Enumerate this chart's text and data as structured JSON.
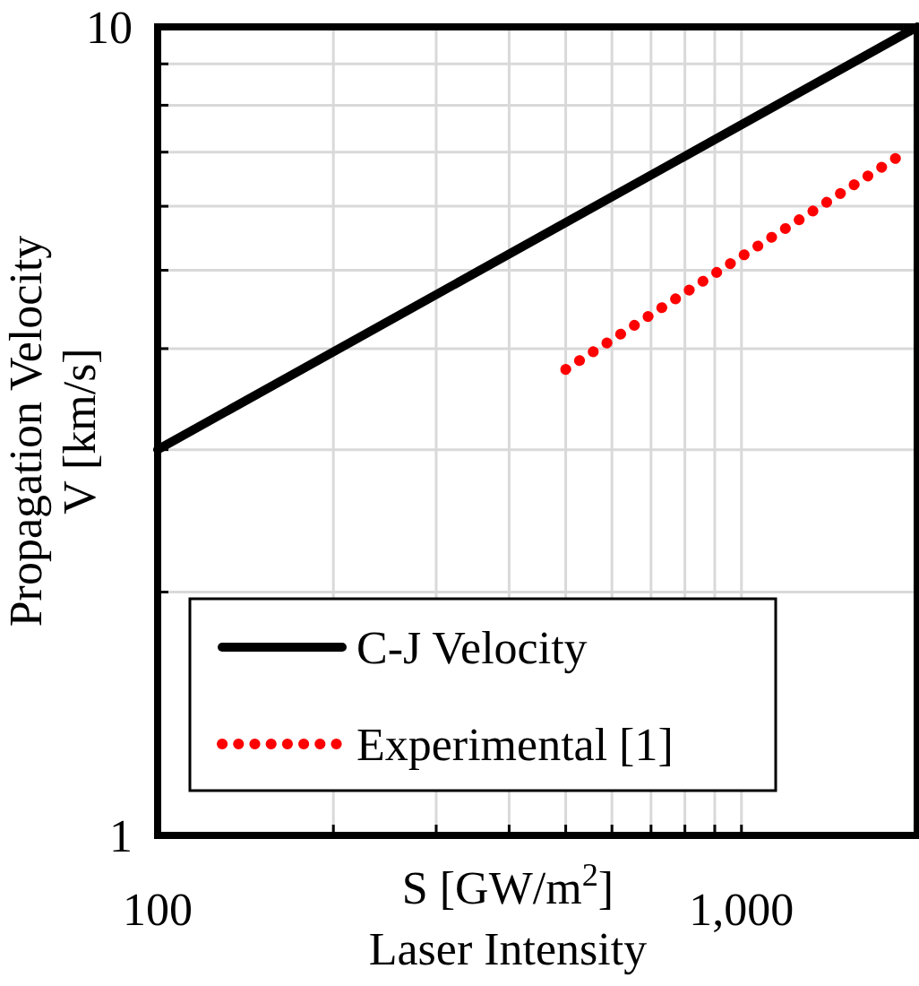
{
  "chart_data": {
    "type": "line",
    "xlabel": "S [GW/m$^{2}$]\nLaser Intensity",
    "ylabel": "Propagation Velocity\nV [km/s]",
    "log": "xy",
    "grid": true,
    "legend": "bottom left",
    "xlim": [
      100,
      2000
    ],
    "ylim": [
      1,
      10
    ],
    "xticks": [
      100,
      {
        "value": 200,
        "label": null
      },
      {
        "value": 300,
        "label": null
      },
      {
        "value": 400,
        "label": null
      },
      {
        "value": 500,
        "label": null
      },
      {
        "value": 600,
        "label": null
      },
      {
        "value": 700,
        "label": null
      },
      {
        "value": 800,
        "label": null
      },
      {
        "value": 900,
        "label": null
      },
      {
        "value": 1000,
        "label": "1,000"
      }
    ],
    "yticks": [
      1,
      {
        "value": 2,
        "label": null
      },
      {
        "value": 3,
        "label": null
      },
      {
        "value": 4,
        "label": null
      },
      {
        "value": 5,
        "label": null
      },
      {
        "value": 6,
        "label": null
      },
      {
        "value": 7,
        "label": null
      },
      {
        "value": 8,
        "label": null
      },
      {
        "value": 9,
        "label": null
      },
      10
    ],
    "series": [
      {
        "name": "C-J Velocity",
        "color": "#000000",
        "line_style": "solid",
        "x": [
          100,
          2000
        ],
        "values": [
          3.0,
          10
        ]
      },
      {
        "name": "Experimental [1]",
        "color": "#ff0000",
        "line_style": "dotted",
        "x": [
          500,
          1000,
          1850
        ],
        "values": [
          3.77,
          5.2,
          6.9
        ]
      }
    ]
  }
}
